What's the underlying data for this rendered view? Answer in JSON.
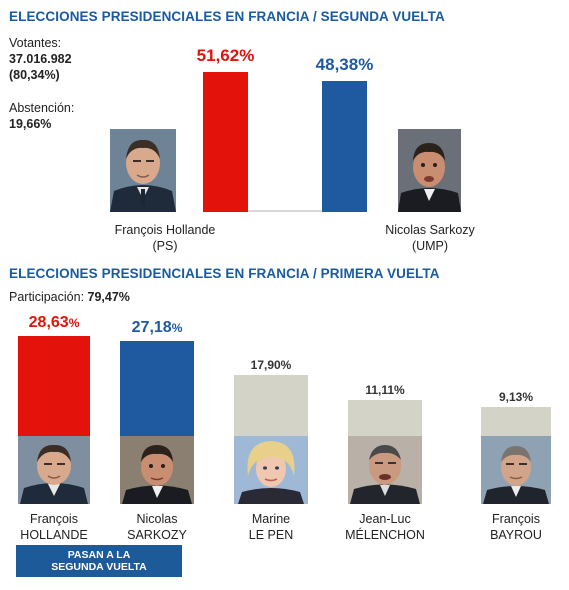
{
  "round2": {
    "title": "ELECCIONES PRESIDENCIALES EN FRANCIA / SEGUNDA VUELTA",
    "votantes_label": "Votantes:",
    "votantes_value": "37.016.982",
    "votantes_pct": "(80,34%)",
    "abstencion_label": "Abstención:",
    "abstencion_value": "19,66%",
    "candidates": [
      {
        "first": "François Hollande",
        "party": "(PS)",
        "pct_label": "51,62%",
        "photo_icon": "hollande-portrait-icon"
      },
      {
        "first": "Nicolas Sarkozy",
        "party": "(UMP)",
        "pct_label": "48,38%",
        "photo_icon": "sarkozy-portrait-icon"
      }
    ]
  },
  "round1": {
    "title": "ELECCIONES PRESIDENCIALES EN FRANCIA / PRIMERA VUELTA",
    "participacion_label": "Participación:",
    "participacion_value": "79,47%",
    "candidates": [
      {
        "first": "François",
        "last": "HOLLANDE",
        "pct_label": "28,63",
        "pct_suffix": "%",
        "photo_icon": "hollande-portrait-icon"
      },
      {
        "first": "Nicolas",
        "last": "SARKOZY",
        "pct_label": "27,18",
        "pct_suffix": "%",
        "photo_icon": "sarkozy-portrait-icon"
      },
      {
        "first": "Marine",
        "last": "LE PEN",
        "pct_label": "17,90%",
        "pct_suffix": "",
        "photo_icon": "le-pen-portrait-icon"
      },
      {
        "first": "Jean-Luc",
        "last": "MÉLENCHON",
        "pct_label": "11,11%",
        "pct_suffix": "",
        "photo_icon": "melenchon-portrait-icon"
      },
      {
        "first": "François",
        "last": "BAYROU",
        "pct_label": "9,13%",
        "pct_suffix": "",
        "photo_icon": "bayrou-portrait-icon"
      }
    ],
    "badge_line1": "PASAN A LA",
    "badge_line2": "SEGUNDA VUELTA"
  },
  "colors": {
    "red": "#e3120b",
    "blue": "#1f5aa0",
    "gray": "#d3d3c8",
    "title": "#1a5aa0"
  },
  "chart_data": [
    {
      "type": "bar",
      "title": "ELECCIONES PRESIDENCIALES EN FRANCIA / SEGUNDA VUELTA",
      "categories": [
        "François Hollande (PS)",
        "Nicolas Sarkozy (UMP)"
      ],
      "values": [
        51.62,
        48.38
      ],
      "unit": "%"
    },
    {
      "type": "bar",
      "title": "ELECCIONES PRESIDENCIALES EN FRANCIA / PRIMERA VUELTA",
      "categories": [
        "François HOLLANDE",
        "Nicolas SARKOZY",
        "Marine LE PEN",
        "Jean-Luc MÉLENCHON",
        "François BAYROU"
      ],
      "values": [
        28.63,
        27.18,
        17.9,
        11.11,
        9.13
      ],
      "unit": "%"
    }
  ]
}
